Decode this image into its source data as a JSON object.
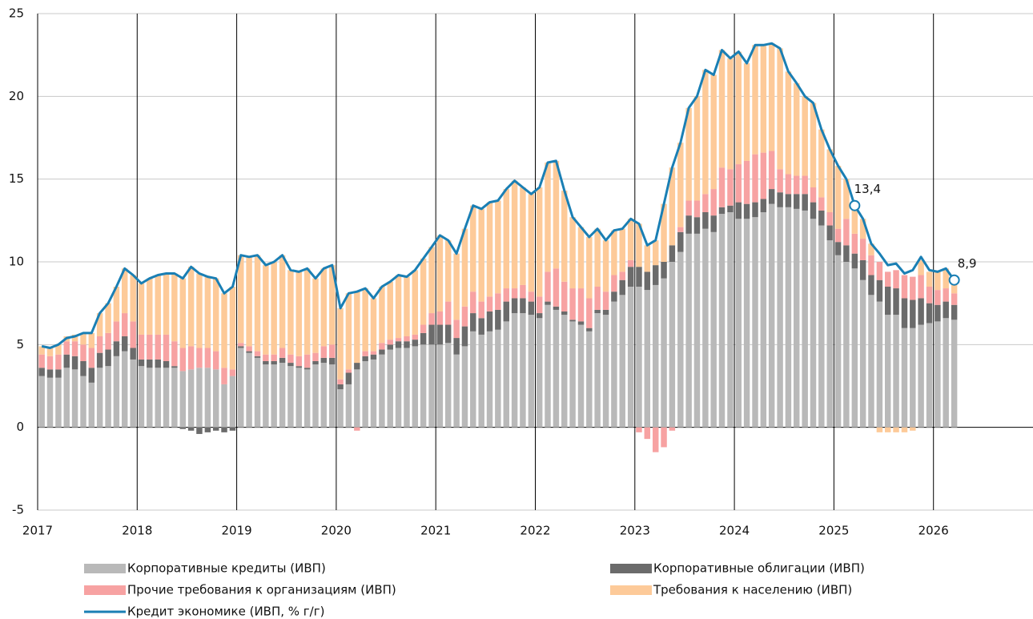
{
  "chart_data": {
    "type": "bar-line",
    "xlim": [
      2017,
      2027
    ],
    "xticks": [
      2017,
      2018,
      2019,
      2020,
      2021,
      2022,
      2023,
      2024,
      2025,
      2026
    ],
    "ylim": [
      -5,
      25
    ],
    "yticks": [
      -5,
      0,
      5,
      10,
      15,
      20,
      25
    ],
    "grid": true,
    "legend": "bottom",
    "x": [
      2017,
      2017.083,
      2017.167,
      2017.25,
      2017.333,
      2017.417,
      2017.5,
      2017.583,
      2017.667,
      2017.75,
      2017.833,
      2017.917,
      2018,
      2018.083,
      2018.167,
      2018.25,
      2018.333,
      2018.417,
      2018.5,
      2018.583,
      2018.667,
      2018.75,
      2018.833,
      2018.917,
      2019,
      2019.083,
      2019.167,
      2019.25,
      2019.333,
      2019.417,
      2019.5,
      2019.583,
      2019.667,
      2019.75,
      2019.833,
      2019.917,
      2020,
      2020.083,
      2020.167,
      2020.25,
      2020.333,
      2020.417,
      2020.5,
      2020.583,
      2020.667,
      2020.75,
      2020.833,
      2020.917,
      2021,
      2021.083,
      2021.167,
      2021.25,
      2021.333,
      2021.417,
      2021.5,
      2021.583,
      2021.667,
      2021.75,
      2021.833,
      2021.917,
      2022,
      2022.083,
      2022.167,
      2022.25,
      2022.333,
      2022.417,
      2022.5,
      2022.583,
      2022.667,
      2022.75,
      2022.833,
      2022.917,
      2023,
      2023.083,
      2023.167,
      2023.25,
      2023.333,
      2023.417,
      2023.5,
      2023.583,
      2023.667,
      2023.75,
      2023.833,
      2023.917,
      2024,
      2024.083,
      2024.167,
      2024.25,
      2024.333,
      2024.417,
      2024.5,
      2024.583,
      2024.667,
      2024.75,
      2024.833,
      2024.917,
      2025,
      2025.083,
      2025.167,
      2025.25,
      2025.333,
      2025.417,
      2025.5,
      2025.583,
      2025.667,
      2025.75,
      2025.833,
      2025.917,
      2026,
      2026.083,
      2026.167
    ],
    "series": [
      {
        "name": "Корпоративные кредиты (ИВП)",
        "color": "#b9b9b9",
        "type": "bar",
        "values": [
          3.1,
          3.0,
          3.0,
          3.6,
          3.5,
          3.1,
          2.7,
          3.6,
          3.7,
          4.3,
          4.6,
          4.1,
          3.7,
          3.6,
          3.6,
          3.6,
          3.6,
          3.4,
          3.5,
          3.6,
          3.6,
          3.5,
          2.6,
          3.1,
          4.8,
          4.5,
          4.2,
          3.8,
          3.8,
          3.9,
          3.7,
          3.6,
          3.5,
          3.8,
          3.9,
          3.8,
          2.3,
          2.6,
          3.5,
          4.0,
          4.1,
          4.4,
          4.7,
          4.8,
          4.8,
          4.9,
          5.0,
          5.0,
          5.0,
          5.1,
          4.4,
          4.9,
          5.8,
          5.6,
          5.8,
          5.9,
          6.4,
          6.9,
          6.9,
          6.8,
          6.6,
          7.4,
          7.1,
          6.8,
          6.4,
          6.2,
          5.8,
          6.9,
          6.8,
          7.6,
          8.0,
          8.5,
          8.5,
          8.3,
          8.6,
          9.0,
          10.0,
          10.6,
          11.7,
          11.7,
          12.0,
          11.8,
          12.9,
          13.0,
          12.6,
          12.6,
          12.7,
          13.0,
          13.5,
          13.3,
          13.3,
          13.2,
          13.1,
          12.6,
          12.2,
          11.3,
          10.4,
          10.0,
          9.6,
          8.9,
          8.0,
          7.6,
          6.8,
          6.8,
          6.0,
          6.0,
          6.2,
          6.3,
          6.4,
          6.6,
          6.5
        ]
      },
      {
        "name": "Корпоративные облигации (ИВП)",
        "color": "#6b6b6b",
        "type": "bar",
        "values": [
          0.5,
          0.5,
          0.5,
          0.8,
          0.8,
          0.9,
          0.9,
          0.9,
          1.0,
          0.9,
          0.9,
          0.7,
          0.4,
          0.5,
          0.5,
          0.4,
          0.1,
          -0.1,
          -0.2,
          -0.4,
          -0.3,
          -0.2,
          -0.3,
          -0.2,
          0.1,
          0.1,
          0.1,
          0.2,
          0.2,
          0.3,
          0.2,
          0.1,
          0.1,
          0.2,
          0.3,
          0.4,
          0.3,
          0.7,
          0.4,
          0.3,
          0.3,
          0.3,
          0.3,
          0.4,
          0.4,
          0.4,
          0.7,
          1.2,
          1.2,
          1.1,
          1.0,
          1.2,
          1.1,
          1.0,
          1.2,
          1.2,
          1.2,
          0.9,
          0.9,
          0.8,
          0.3,
          0.2,
          0.2,
          0.2,
          0.1,
          0.2,
          0.2,
          0.2,
          0.3,
          0.6,
          0.9,
          1.2,
          1.2,
          1.1,
          1.2,
          1.0,
          1.0,
          1.2,
          1.1,
          1.0,
          1.0,
          1.0,
          0.4,
          0.4,
          1.0,
          0.9,
          0.9,
          0.8,
          0.9,
          0.9,
          0.8,
          0.9,
          1.0,
          1.0,
          0.9,
          0.9,
          0.8,
          1.0,
          0.9,
          1.2,
          1.2,
          1.3,
          1.7,
          1.6,
          1.8,
          1.7,
          1.6,
          1.2,
          1.0,
          1.0,
          0.9
        ]
      },
      {
        "name": "Прочие требования к организациям (ИВП)",
        "color": "#f7a2a2",
        "type": "bar",
        "values": [
          0.8,
          0.8,
          0.9,
          0.8,
          0.9,
          1.0,
          1.2,
          1.0,
          1.0,
          1.2,
          1.4,
          1.6,
          1.5,
          1.5,
          1.5,
          1.6,
          1.5,
          1.4,
          1.4,
          1.2,
          1.2,
          1.1,
          1.0,
          0.4,
          0.2,
          0.3,
          0.3,
          0.4,
          0.4,
          0.6,
          0.5,
          0.6,
          0.8,
          0.5,
          0.7,
          0.8,
          0.3,
          0.2,
          -0.2,
          0.3,
          0.2,
          0.4,
          0.3,
          0.2,
          0.3,
          0.3,
          0.5,
          0.7,
          0.8,
          1.4,
          1.1,
          1.2,
          1.3,
          1.0,
          0.9,
          1.0,
          0.8,
          0.6,
          0.8,
          0.6,
          1.0,
          1.8,
          2.3,
          1.8,
          1.9,
          2.0,
          1.8,
          1.4,
          1.1,
          1.0,
          0.5,
          0.4,
          -0.3,
          -0.7,
          -1.5,
          -1.2,
          -0.2,
          0.3,
          0.9,
          1.0,
          1.1,
          1.6,
          2.4,
          2.2,
          2.3,
          2.6,
          2.9,
          2.8,
          2.3,
          1.4,
          1.2,
          1.1,
          1.1,
          0.9,
          0.8,
          0.8,
          0.8,
          1.6,
          1.2,
          1.3,
          1.2,
          1.1,
          0.9,
          1.1,
          1.4,
          1.4,
          1.4,
          1.0,
          0.9,
          0.8,
          0.7
        ]
      },
      {
        "name": "Требования к населению (ИВП)",
        "color": "#fdca99",
        "type": "bar",
        "values": [
          0.5,
          0.5,
          0.6,
          0.3,
          0.4,
          0.7,
          0.9,
          1.4,
          1.8,
          2.1,
          2.7,
          2.8,
          3.1,
          3.4,
          3.6,
          3.7,
          4.1,
          4.2,
          4.8,
          4.5,
          4.3,
          4.4,
          4.5,
          5.0,
          5.3,
          5.4,
          5.8,
          5.4,
          5.6,
          5.6,
          5.1,
          5.1,
          5.2,
          4.5,
          4.7,
          4.8,
          4.3,
          4.6,
          4.3,
          3.8,
          3.2,
          3.4,
          3.5,
          3.8,
          3.6,
          3.9,
          4.0,
          4.0,
          4.6,
          3.7,
          4.0,
          4.7,
          5.2,
          5.6,
          5.7,
          5.6,
          6.0,
          6.5,
          5.9,
          5.9,
          6.6,
          6.6,
          6.5,
          5.5,
          4.3,
          3.7,
          3.7,
          3.5,
          3.1,
          2.7,
          2.6,
          2.5,
          2.6,
          1.6,
          1.5,
          3.5,
          4.7,
          5.1,
          5.6,
          6.3,
          7.5,
          6.9,
          7.1,
          6.7,
          6.8,
          5.9,
          6.6,
          6.5,
          6.5,
          7.3,
          6.2,
          5.6,
          4.8,
          5.1,
          4.1,
          3.8,
          3.8,
          2.4,
          1.7,
          1.2,
          0.7,
          -0.3,
          -0.3,
          -0.3,
          -0.3,
          -0.2,
          0.9,
          0.9,
          1.1,
          1.2,
          0.8
        ]
      },
      {
        "name": "Кредит экономике (ИВП, % г/г)",
        "color": "#1a7fb4",
        "type": "line",
        "values": [
          4.9,
          4.8,
          5.0,
          5.4,
          5.5,
          5.7,
          5.7,
          6.9,
          7.5,
          8.5,
          9.6,
          9.2,
          8.7,
          9.0,
          9.2,
          9.3,
          9.3,
          9.0,
          9.7,
          9.3,
          9.1,
          9.0,
          8.1,
          8.5,
          10.4,
          10.3,
          10.4,
          9.8,
          10.0,
          10.4,
          9.5,
          9.4,
          9.6,
          9.0,
          9.6,
          9.8,
          7.2,
          8.1,
          8.2,
          8.4,
          7.8,
          8.5,
          8.8,
          9.2,
          9.1,
          9.5,
          10.2,
          10.9,
          11.6,
          11.3,
          10.5,
          12.0,
          13.4,
          13.2,
          13.6,
          13.7,
          14.4,
          14.9,
          14.5,
          14.1,
          14.5,
          16.0,
          16.1,
          14.3,
          12.7,
          12.1,
          11.5,
          12.0,
          11.3,
          11.9,
          12.0,
          12.6,
          12.3,
          11.0,
          11.3,
          13.5,
          15.7,
          17.2,
          19.3,
          20.0,
          21.6,
          21.3,
          22.8,
          22.3,
          22.7,
          22.0,
          23.1,
          23.1,
          23.2,
          22.9,
          21.5,
          20.8,
          20.0,
          19.6,
          18.0,
          16.8,
          15.8,
          15.0,
          13.4,
          12.6,
          11.1,
          10.5,
          9.8,
          9.9,
          9.3,
          9.5,
          10.3,
          9.5,
          9.4,
          9.6,
          8.9
        ],
        "value_labels": [
          null,
          null,
          null,
          null,
          null,
          null,
          null,
          null,
          null,
          null,
          null,
          null,
          null,
          null,
          null,
          null,
          null,
          null,
          null,
          null,
          null,
          null,
          null,
          null,
          null,
          null,
          null,
          null,
          null,
          null,
          null,
          null,
          null,
          null,
          null,
          null,
          null,
          null,
          null,
          null,
          null,
          null,
          null,
          null,
          null,
          null,
          null,
          null,
          null,
          null,
          null,
          null,
          null,
          null,
          null,
          null,
          null,
          null,
          null,
          null,
          null,
          null,
          null,
          null,
          null,
          null,
          null,
          null,
          null,
          null,
          null,
          null,
          null,
          null,
          null,
          null,
          null,
          null,
          null,
          null,
          null,
          null,
          null,
          null,
          null,
          null,
          null,
          null,
          null,
          null,
          null,
          null,
          null,
          null,
          null,
          null,
          null,
          null,
          "13,4",
          null,
          null,
          null,
          null,
          null,
          null,
          null,
          null,
          null,
          null,
          null,
          "8,9"
        ]
      }
    ]
  }
}
